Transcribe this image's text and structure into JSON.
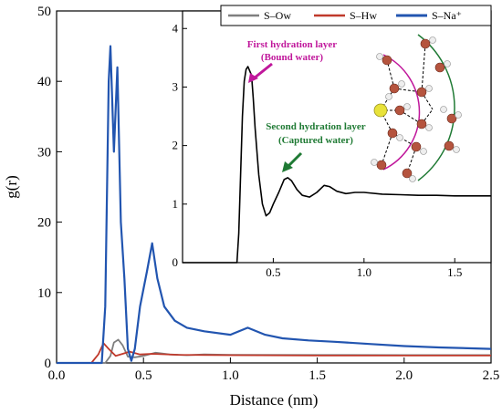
{
  "chart_data": {
    "type": "line",
    "xlabel": "Distance (nm)",
    "ylabel": "g(r)",
    "xlim": [
      0.0,
      2.5
    ],
    "ylim": [
      0,
      50
    ],
    "xticks": [
      "0.0",
      "0.5",
      "1.0",
      "1.5",
      "2.0",
      "2.5"
    ],
    "yticks": [
      "0",
      "10",
      "20",
      "30",
      "40",
      "50"
    ],
    "legend": {
      "position": "top-right",
      "entries": [
        "S–Ow",
        "S–Hw",
        "S–Na⁺"
      ]
    },
    "series": [
      {
        "name": "S–Ow",
        "color": "#7f7f7f",
        "points": [
          [
            0.0,
            0
          ],
          [
            0.28,
            0
          ],
          [
            0.31,
            1.0
          ],
          [
            0.33,
            2.9
          ],
          [
            0.355,
            3.3
          ],
          [
            0.38,
            2.5
          ],
          [
            0.41,
            0.9
          ],
          [
            0.45,
            0.8
          ],
          [
            0.5,
            1.0
          ],
          [
            0.57,
            1.45
          ],
          [
            0.65,
            1.2
          ],
          [
            0.75,
            1.1
          ],
          [
            0.85,
            1.2
          ],
          [
            1.0,
            1.15
          ],
          [
            1.5,
            1.13
          ],
          [
            2.0,
            1.12
          ],
          [
            2.5,
            1.12
          ]
        ]
      },
      {
        "name": "S–Hw",
        "color": "#c0392b",
        "points": [
          [
            0.0,
            0
          ],
          [
            0.2,
            0
          ],
          [
            0.24,
            1.2
          ],
          [
            0.27,
            2.8
          ],
          [
            0.3,
            2.0
          ],
          [
            0.34,
            1.0
          ],
          [
            0.38,
            1.3
          ],
          [
            0.42,
            1.6
          ],
          [
            0.48,
            1.2
          ],
          [
            0.55,
            1.3
          ],
          [
            0.7,
            1.15
          ],
          [
            1.0,
            1.1
          ],
          [
            1.5,
            1.05
          ],
          [
            2.0,
            1.05
          ],
          [
            2.5,
            1.05
          ]
        ]
      },
      {
        "name": "S–Na⁺",
        "color": "#2255b0",
        "points": [
          [
            0.0,
            0
          ],
          [
            0.26,
            0
          ],
          [
            0.28,
            8
          ],
          [
            0.3,
            40
          ],
          [
            0.31,
            45
          ],
          [
            0.33,
            30
          ],
          [
            0.35,
            42
          ],
          [
            0.37,
            20
          ],
          [
            0.39,
            12
          ],
          [
            0.41,
            2
          ],
          [
            0.43,
            0.3
          ],
          [
            0.45,
            2
          ],
          [
            0.48,
            8
          ],
          [
            0.52,
            13
          ],
          [
            0.55,
            17
          ],
          [
            0.58,
            12
          ],
          [
            0.62,
            8
          ],
          [
            0.68,
            6
          ],
          [
            0.75,
            5
          ],
          [
            0.85,
            4.5
          ],
          [
            1.0,
            4
          ],
          [
            1.1,
            5
          ],
          [
            1.2,
            4
          ],
          [
            1.3,
            3.5
          ],
          [
            1.45,
            3.2
          ],
          [
            1.6,
            3
          ],
          [
            1.8,
            2.7
          ],
          [
            2.0,
            2.4
          ],
          [
            2.2,
            2.2
          ],
          [
            2.5,
            2.0
          ]
        ]
      }
    ],
    "inset": {
      "xlim": [
        0.0,
        1.7
      ],
      "ylim": [
        0,
        4.3
      ],
      "xticks": [
        "0.5",
        "1.0",
        "1.5"
      ],
      "yticks": [
        "0",
        "1",
        "2",
        "3",
        "4"
      ],
      "series": [
        {
          "name": "S–Ow",
          "color": "#000000",
          "points": [
            [
              0.0,
              0
            ],
            [
              0.3,
              0
            ],
            [
              0.31,
              0.5
            ],
            [
              0.32,
              1.5
            ],
            [
              0.33,
              2.5
            ],
            [
              0.34,
              3.1
            ],
            [
              0.35,
              3.3
            ],
            [
              0.36,
              3.35
            ],
            [
              0.38,
              3.2
            ],
            [
              0.39,
              2.8
            ],
            [
              0.4,
              2.3
            ],
            [
              0.42,
              1.5
            ],
            [
              0.44,
              1.0
            ],
            [
              0.46,
              0.8
            ],
            [
              0.48,
              0.85
            ],
            [
              0.5,
              1.0
            ],
            [
              0.53,
              1.2
            ],
            [
              0.56,
              1.42
            ],
            [
              0.58,
              1.45
            ],
            [
              0.6,
              1.4
            ],
            [
              0.63,
              1.25
            ],
            [
              0.66,
              1.15
            ],
            [
              0.7,
              1.12
            ],
            [
              0.74,
              1.2
            ],
            [
              0.78,
              1.32
            ],
            [
              0.81,
              1.3
            ],
            [
              0.85,
              1.22
            ],
            [
              0.9,
              1.18
            ],
            [
              0.95,
              1.2
            ],
            [
              1.0,
              1.2
            ],
            [
              1.1,
              1.17
            ],
            [
              1.2,
              1.16
            ],
            [
              1.3,
              1.15
            ],
            [
              1.4,
              1.15
            ],
            [
              1.5,
              1.14
            ],
            [
              1.6,
              1.14
            ],
            [
              1.7,
              1.14
            ]
          ]
        }
      ],
      "annotations": [
        {
          "id": "first",
          "lines": [
            "First hydration layer",
            "(Bound water)"
          ],
          "color": "#c0179b"
        },
        {
          "id": "second",
          "lines": [
            "Second hydration layer",
            "(Captured water)"
          ],
          "color": "#1f7a34"
        }
      ]
    }
  }
}
